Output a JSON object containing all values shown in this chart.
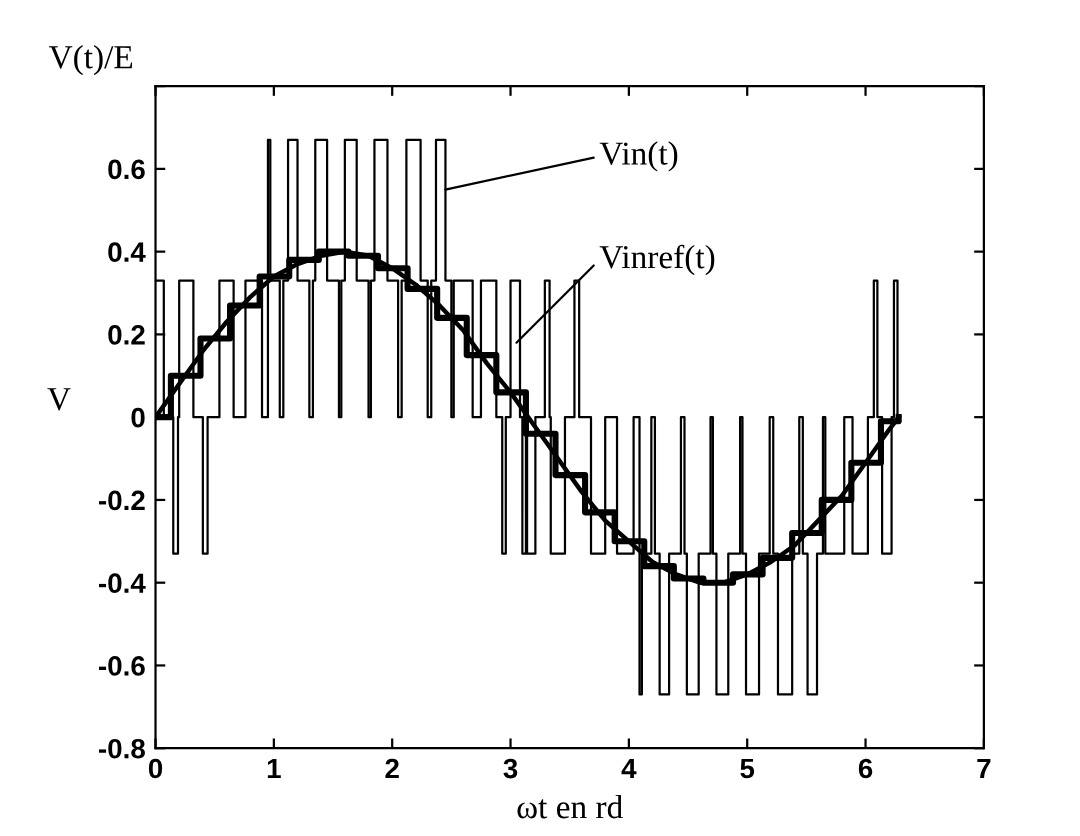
{
  "chart_data": {
    "type": "step",
    "title": "V(t)/E",
    "xlabel": "ωt en rd",
    "ylabel": "V",
    "xlim": [
      0,
      7
    ],
    "xticks": [
      0,
      1,
      2,
      3,
      4,
      5,
      6,
      7
    ],
    "ylim": [
      -0.8,
      0.8
    ],
    "yticks": [
      -0.8,
      -0.6,
      -0.4,
      -0.2,
      0,
      0.2,
      0.4,
      0.6,
      {
        "value": 0.8,
        "label": null
      }
    ],
    "grid": false,
    "legend": false,
    "marker": "none",
    "line_style": "solid",
    "series": [
      {
        "color": "#000000",
        "x": [
          0,
          0.07,
          0.15,
          0.19,
          0.2,
          0.32,
          0.4,
          0.44,
          0.54,
          0.66,
          0.76,
          0.9,
          0.95,
          0.97,
          1.05,
          1.08,
          1.12,
          1.2,
          1.3,
          1.33,
          1.35,
          1.45,
          1.55,
          1.57,
          1.6,
          1.7,
          1.8,
          1.82,
          1.85,
          1.96,
          2.05,
          2.08,
          2.12,
          2.24,
          2.3,
          2.33,
          2.37,
          2.45,
          2.5,
          2.52,
          2.68,
          2.75,
          2.88,
          2.93,
          2.96,
          3.0,
          3.08,
          3.1,
          3.13,
          3.14,
          3.21,
          3.29,
          3.33,
          3.34,
          3.46,
          3.54,
          3.58,
          3.68,
          3.8,
          3.9,
          4.04,
          4.09,
          4.11,
          4.19,
          4.22,
          4.26,
          4.34,
          4.44,
          4.47,
          4.49,
          4.59,
          4.69,
          4.71,
          4.74,
          4.84,
          4.94,
          4.96,
          4.99,
          5.1,
          5.19,
          5.22,
          5.26,
          5.38,
          5.44,
          5.47,
          5.51,
          5.59,
          5.64,
          5.66,
          5.82,
          5.89,
          6.02,
          6.07,
          6.1,
          6.14,
          6.22,
          6.24,
          6.27,
          6.28
        ],
        "values": [
          0.33,
          0,
          -0.33,
          0,
          0.33,
          0,
          -0.33,
          0,
          0.33,
          0,
          0.33,
          0,
          0.67,
          0.33,
          0,
          0.33,
          0.67,
          0.33,
          0,
          0.33,
          0.67,
          0.33,
          0,
          0.33,
          0.67,
          0.33,
          0,
          0.33,
          0.67,
          0.33,
          0,
          0.33,
          0.67,
          0.33,
          0,
          0.33,
          0.67,
          0.33,
          0,
          0.33,
          0,
          0.33,
          0,
          -0.33,
          0,
          0.33,
          0,
          -0.33,
          0,
          -0.33,
          0,
          0.33,
          0,
          -0.33,
          0,
          0.33,
          0,
          -0.33,
          0,
          -0.33,
          0,
          -0.67,
          -0.33,
          0,
          -0.33,
          -0.67,
          -0.33,
          0,
          -0.33,
          -0.67,
          -0.33,
          0,
          -0.33,
          -0.67,
          -0.33,
          0,
          -0.33,
          -0.67,
          -0.33,
          0,
          -0.33,
          -0.67,
          -0.33,
          0,
          -0.33,
          -0.67,
          -0.33,
          0,
          -0.33,
          0,
          -0.33,
          0,
          0.33,
          0,
          -0.33,
          0,
          0.33,
          0,
          0
        ]
      },
      {
        "color": "#000000",
        "x": [
          0,
          0.13,
          0.38,
          0.63,
          0.88,
          1.13,
          1.38,
          1.63,
          1.88,
          2.13,
          2.38,
          2.63,
          2.88,
          3.13,
          3.38,
          3.63,
          3.88,
          4.13,
          4.38,
          4.63,
          4.88,
          5.13,
          5.38,
          5.63,
          5.88,
          6.13,
          6.28
        ],
        "values": [
          0,
          0.1,
          0.19,
          0.27,
          0.34,
          0.38,
          0.4,
          0.39,
          0.36,
          0.31,
          0.24,
          0.15,
          0.06,
          -0.04,
          -0.14,
          -0.23,
          -0.3,
          -0.36,
          -0.39,
          -0.4,
          -0.38,
          -0.34,
          -0.28,
          -0.2,
          -0.11,
          -0.01,
          0
        ]
      },
      {
        "type": "line",
        "color": "#000000",
        "x": [
          0,
          0.2,
          0.4,
          0.6,
          0.8,
          1.0,
          1.2,
          1.4,
          1.6,
          1.8,
          2.0,
          2.2,
          2.4,
          2.6,
          2.8,
          3.0,
          3.2,
          3.4,
          3.6,
          3.8,
          4.0,
          4.2,
          4.4,
          4.6,
          4.8,
          5.0,
          5.2,
          5.4,
          5.6,
          5.8,
          6.0,
          6.2,
          6.28
        ],
        "values": [
          0,
          0.08,
          0.16,
          0.23,
          0.29,
          0.34,
          0.37,
          0.39,
          0.4,
          0.39,
          0.36,
          0.32,
          0.27,
          0.21,
          0.13,
          0.06,
          -0.02,
          -0.1,
          -0.18,
          -0.25,
          -0.3,
          -0.35,
          -0.38,
          -0.4,
          -0.4,
          -0.38,
          -0.35,
          -0.31,
          -0.25,
          -0.19,
          -0.11,
          -0.03,
          0
        ]
      }
    ],
    "annotations": [
      {
        "text": "Vin(t)",
        "x": 2.45,
        "y": 0.55
      },
      {
        "text": "Vinref(t)",
        "x": 3.05,
        "y": 0.18
      }
    ]
  }
}
